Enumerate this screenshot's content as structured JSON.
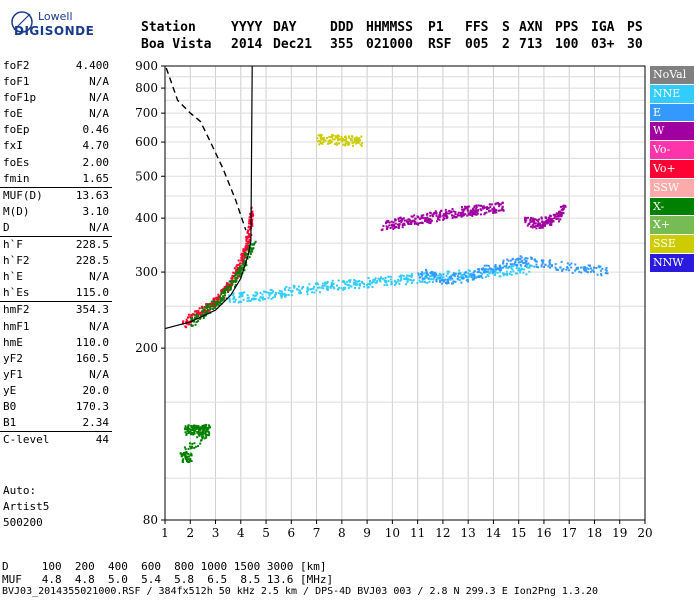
{
  "brand": {
    "line1": "Lowell",
    "line2": "DIGISONDE"
  },
  "header": {
    "labels": [
      "Station",
      "YYYY",
      "DAY",
      "DDD",
      "HHMMSS",
      "P1",
      "FFS",
      "S",
      "AXN",
      "PPS",
      "IGA",
      "PS"
    ],
    "values": [
      "Boa Vista",
      "2014",
      "Dec21",
      "355",
      "021000",
      "RSF",
      "005",
      "2",
      "713",
      "100",
      "03+",
      "30"
    ]
  },
  "params": [
    {
      "name": "foF2",
      "value": "4.400"
    },
    {
      "name": "foF1",
      "value": "N/A"
    },
    {
      "name": "foF1p",
      "value": "N/A"
    },
    {
      "name": "foE",
      "value": "N/A"
    },
    {
      "name": "foEp",
      "value": "0.46"
    },
    {
      "name": "fxI",
      "value": "4.70"
    },
    {
      "name": "foEs",
      "value": "2.00"
    },
    {
      "name": "fmin",
      "value": "1.65"
    },
    {
      "name": "MUF(D)",
      "value": "13.63",
      "sep": true
    },
    {
      "name": "M(D)",
      "value": "3.10"
    },
    {
      "name": "D",
      "value": "N/A"
    },
    {
      "name": "h`F",
      "value": "228.5",
      "sep": true
    },
    {
      "name": "h`F2",
      "value": "228.5"
    },
    {
      "name": "h`E",
      "value": "N/A"
    },
    {
      "name": "h`Es",
      "value": "115.0"
    },
    {
      "name": "hmF2",
      "value": "354.3",
      "sep": true
    },
    {
      "name": "hmF1",
      "value": "N/A"
    },
    {
      "name": "hmE",
      "value": "110.0"
    },
    {
      "name": "yF2",
      "value": "160.5"
    },
    {
      "name": "yF1",
      "value": "N/A"
    },
    {
      "name": "yE",
      "value": "20.0"
    },
    {
      "name": "B0",
      "value": "170.3"
    },
    {
      "name": "B1",
      "value": "2.34"
    },
    {
      "name": "C-level",
      "value": "44",
      "sep": true
    }
  ],
  "auto": {
    "line1": "Auto:",
    "line2": "Artist5",
    "line3": "500200"
  },
  "legend": [
    {
      "name": "NoVal",
      "color": "#808080"
    },
    {
      "name": "NNE",
      "color": "#33ccff"
    },
    {
      "name": "E",
      "color": "#3399ff"
    },
    {
      "name": "W",
      "color": "#a000a0"
    },
    {
      "name": "Vo-",
      "color": "#ff33aa"
    },
    {
      "name": "Vo+",
      "color": "#ff0033"
    },
    {
      "name": "SSW",
      "color": "#ffaaaa"
    },
    {
      "name": "X-",
      "color": "#008000"
    },
    {
      "name": "X+",
      "color": "#77bb55"
    },
    {
      "name": "SSE",
      "color": "#cccc00"
    },
    {
      "name": "NNW",
      "color": "#2a1ae0"
    }
  ],
  "footer": {
    "d_row": "D     100  200  400  600  800 1000 1500 3000 [km]",
    "muf_row": "MUF   4.8  4.8  5.0  5.4  5.8  6.5  8.5 13.6 [MHz]",
    "file_line": "BVJ03_2014355021000.RSF / 384fx512h 50 kHz 2.5 km / DPS-4D BVJ03 003 / 2.8 N 299.3 E Ion2Png 1.3.20"
  },
  "chart_data": {
    "type": "scatter",
    "xlim": [
      1,
      20
    ],
    "ylim": [
      80,
      900
    ],
    "yscale": "log",
    "xticks": [
      1,
      2,
      3,
      4,
      5,
      6,
      7,
      8,
      9,
      10,
      11,
      12,
      13,
      14,
      15,
      16,
      17,
      18,
      19,
      20
    ],
    "yticks": [
      80,
      200,
      300,
      400,
      500,
      600,
      700,
      800,
      900
    ],
    "grid": true,
    "traces": [
      {
        "name": "O-trace",
        "color": "#ff0033",
        "points": [
          [
            1.7,
            230
          ],
          [
            2.3,
            240
          ],
          [
            2.9,
            255
          ],
          [
            3.4,
            275
          ],
          [
            3.8,
            300
          ],
          [
            4.1,
            330
          ],
          [
            4.3,
            370
          ],
          [
            4.4,
            420
          ]
        ]
      },
      {
        "name": "X-trace",
        "color": "#008000",
        "points": [
          [
            2.0,
            230
          ],
          [
            2.6,
            245
          ],
          [
            3.2,
            262
          ],
          [
            3.7,
            285
          ],
          [
            4.1,
            315
          ],
          [
            4.5,
            355
          ]
        ]
      },
      {
        "name": "F2 spread",
        "color": "#33ccff",
        "points": [
          [
            3.5,
            262
          ],
          [
            4.5,
            265
          ],
          [
            5.5,
            270
          ],
          [
            6.5,
            275
          ],
          [
            7.5,
            280
          ],
          [
            8.5,
            283
          ],
          [
            9.5,
            287
          ],
          [
            10.5,
            290
          ],
          [
            11.5,
            293
          ],
          [
            12.5,
            296
          ],
          [
            13.5,
            300
          ],
          [
            14.5,
            303
          ],
          [
            15.5,
            306
          ]
        ]
      },
      {
        "name": "Oblique band",
        "color": "#a000a0",
        "points": [
          [
            9.6,
            385
          ],
          [
            10.2,
            392
          ],
          [
            10.8,
            398
          ],
          [
            11.4,
            402
          ],
          [
            12.0,
            410
          ],
          [
            12.6,
            415
          ],
          [
            13.2,
            418
          ],
          [
            13.8,
            422
          ],
          [
            14.4,
            428
          ]
        ]
      },
      {
        "name": "Upper band",
        "color": "#a000a0",
        "points": [
          [
            15.2,
            395
          ],
          [
            15.7,
            390
          ],
          [
            16.1,
            395
          ],
          [
            16.5,
            405
          ],
          [
            16.8,
            425
          ]
        ]
      },
      {
        "name": "Es",
        "color": "#008000",
        "points": [
          [
            1.8,
            130
          ],
          [
            2.1,
            130
          ],
          [
            2.4,
            130
          ],
          [
            2.7,
            130
          ],
          [
            1.6,
            112
          ],
          [
            2.0,
            112
          ]
        ]
      },
      {
        "name": "Oblique SSE",
        "color": "#cccc00",
        "points": [
          [
            7.0,
            612
          ],
          [
            7.6,
            610
          ],
          [
            8.2,
            608
          ],
          [
            8.8,
            606
          ]
        ]
      },
      {
        "name": "High band",
        "color": "#3399ff",
        "points": [
          [
            11.0,
            300
          ],
          [
            12.0,
            290
          ],
          [
            13.0,
            294
          ],
          [
            14.0,
            310
          ],
          [
            15.0,
            320
          ],
          [
            16.0,
            315
          ],
          [
            17.5,
            305
          ],
          [
            18.5,
            303
          ]
        ]
      }
    ],
    "profile_solid": [
      [
        1,
        222
      ],
      [
        2,
        230
      ],
      [
        3,
        245
      ],
      [
        3.6,
        265
      ],
      [
        4.0,
        290
      ],
      [
        4.3,
        330
      ],
      [
        4.4,
        354
      ],
      [
        4.45,
        900
      ]
    ],
    "profile_dashed": [
      [
        1.05,
        890
      ],
      [
        1.5,
        750
      ],
      [
        2.0,
        700
      ],
      [
        2.4,
        670
      ],
      [
        2.8,
        600
      ],
      [
        3.3,
        520
      ],
      [
        3.8,
        440
      ],
      [
        4.2,
        375
      ]
    ]
  }
}
